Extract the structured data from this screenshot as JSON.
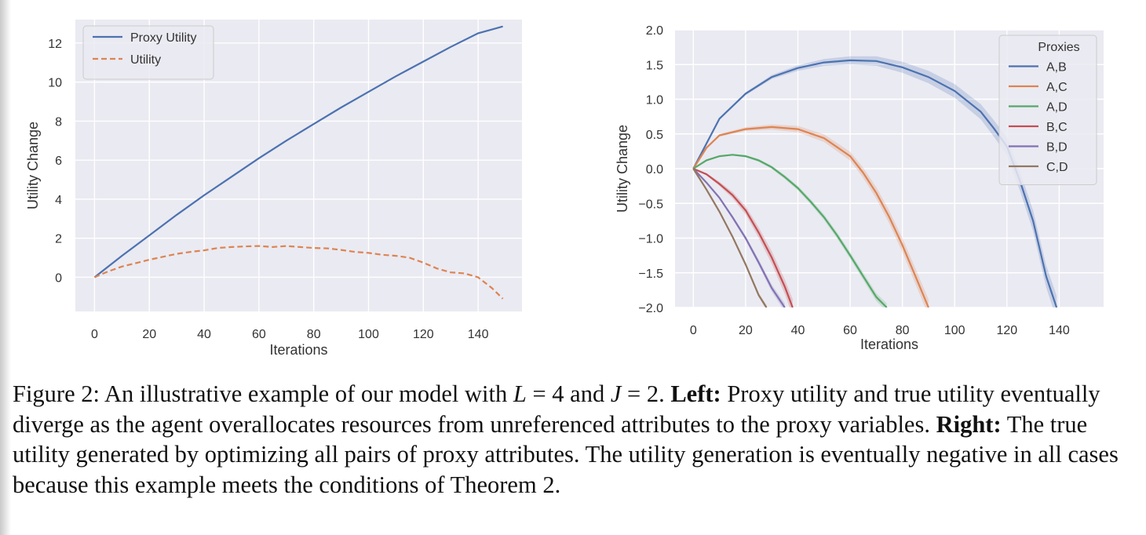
{
  "chart_data": [
    {
      "type": "line",
      "xlabel": "Iterations",
      "ylabel": "Utility Change",
      "xlim": [
        -7,
        156
      ],
      "ylim": [
        -1.75,
        13.2
      ],
      "xticks": [
        0,
        20,
        40,
        60,
        80,
        100,
        120,
        140
      ],
      "yticks": [
        0,
        2,
        4,
        6,
        8,
        10,
        12
      ],
      "grid": true,
      "legend": "top-left",
      "series": [
        {
          "name": "Proxy Utility",
          "color": "#4c72b0",
          "style": "solid",
          "x": [
            0,
            10,
            20,
            30,
            40,
            50,
            60,
            70,
            80,
            90,
            100,
            110,
            120,
            130,
            140,
            149
          ],
          "values": [
            0,
            1.1,
            2.15,
            3.2,
            4.2,
            5.15,
            6.1,
            7.0,
            7.85,
            8.7,
            9.5,
            10.3,
            11.05,
            11.8,
            12.5,
            12.85
          ]
        },
        {
          "name": "Utility",
          "color": "#dd8452",
          "style": "dashed",
          "x": [
            0,
            5,
            10,
            15,
            20,
            25,
            30,
            35,
            40,
            45,
            50,
            55,
            60,
            65,
            70,
            75,
            80,
            85,
            90,
            95,
            100,
            105,
            110,
            115,
            120,
            125,
            130,
            135,
            140,
            145,
            149
          ],
          "values": [
            0,
            0.3,
            0.55,
            0.72,
            0.9,
            1.05,
            1.2,
            1.3,
            1.38,
            1.5,
            1.55,
            1.58,
            1.6,
            1.55,
            1.6,
            1.55,
            1.5,
            1.48,
            1.4,
            1.3,
            1.25,
            1.15,
            1.1,
            1.0,
            0.75,
            0.45,
            0.25,
            0.2,
            0.0,
            -0.55,
            -1.1
          ]
        }
      ]
    },
    {
      "type": "line",
      "xlabel": "Iterations",
      "ylabel": "Utility Change",
      "xlim": [
        -7,
        157
      ],
      "ylim": [
        -2.0,
        2.0
      ],
      "xticks": [
        0,
        20,
        40,
        60,
        80,
        100,
        120,
        140
      ],
      "yticks": [
        -2.0,
        -1.5,
        -1.0,
        -0.5,
        0.0,
        0.5,
        1.0,
        1.5,
        2.0
      ],
      "ytick_labels": [
        "−2.0",
        "−1.5",
        "−1.0",
        "−0.5",
        "0.0",
        "0.5",
        "1.0",
        "1.5",
        "2.0"
      ],
      "grid": true,
      "legend": "top-right",
      "legend_title": "Proxies",
      "series": [
        {
          "name": "A,B",
          "color": "#4c72b0",
          "x": [
            0,
            10,
            20,
            30,
            40,
            50,
            60,
            70,
            80,
            90,
            100,
            110,
            115,
            120,
            125,
            130,
            135,
            139
          ],
          "values": [
            0,
            0.72,
            1.08,
            1.32,
            1.45,
            1.53,
            1.56,
            1.55,
            1.46,
            1.32,
            1.12,
            0.82,
            0.58,
            0.32,
            -0.18,
            -0.75,
            -1.55,
            -2.0
          ],
          "band": 0.14
        },
        {
          "name": "A,C",
          "color": "#dd8452",
          "x": [
            0,
            5,
            10,
            20,
            30,
            40,
            50,
            60,
            65,
            70,
            75,
            80,
            85,
            90
          ],
          "values": [
            0,
            0.3,
            0.48,
            0.57,
            0.6,
            0.57,
            0.44,
            0.18,
            -0.06,
            -0.35,
            -0.7,
            -1.1,
            -1.55,
            -2.0
          ],
          "band": 0.1
        },
        {
          "name": "A,D",
          "color": "#55a868",
          "x": [
            0,
            5,
            10,
            15,
            20,
            25,
            30,
            35,
            40,
            45,
            50,
            55,
            60,
            65,
            70,
            74
          ],
          "values": [
            0,
            0.12,
            0.18,
            0.2,
            0.18,
            0.12,
            0.02,
            -0.12,
            -0.28,
            -0.48,
            -0.7,
            -0.96,
            -1.25,
            -1.55,
            -1.85,
            -2.0
          ],
          "band": 0.05
        },
        {
          "name": "B,C",
          "color": "#c44e52",
          "x": [
            0,
            5,
            10,
            15,
            20,
            25,
            30,
            35,
            38
          ],
          "values": [
            0,
            -0.08,
            -0.22,
            -0.38,
            -0.6,
            -0.92,
            -1.28,
            -1.7,
            -2.0
          ],
          "band": 0.1
        },
        {
          "name": "B,D",
          "color": "#8172b3",
          "x": [
            0,
            5,
            10,
            15,
            20,
            25,
            30,
            35
          ],
          "values": [
            0,
            -0.2,
            -0.42,
            -0.7,
            -1.0,
            -1.35,
            -1.72,
            -2.0
          ],
          "band": 0.05
        },
        {
          "name": "C,D",
          "color": "#937860",
          "x": [
            0,
            5,
            10,
            15,
            20,
            25,
            28
          ],
          "values": [
            0,
            -0.3,
            -0.62,
            -0.98,
            -1.38,
            -1.82,
            -2.0
          ],
          "band": 0.03
        }
      ]
    }
  ],
  "caption": {
    "label": "Figure 2:",
    "text1": "An illustrative example of our model with",
    "math1": "L",
    "eq1": "= 4 and",
    "math2": "J",
    "eq2": "= 2.",
    "left_label": "Left:",
    "left_text": "Proxy utility and true utility eventually diverge as the agent overallocates resources from unreferenced attributes to the proxy variables.",
    "right_label": "Right:",
    "right_text": "The true utility generated by optimizing all pairs of proxy attributes. The utility generation is eventually negative in all cases because this example meets the conditions of Theorem 2."
  }
}
